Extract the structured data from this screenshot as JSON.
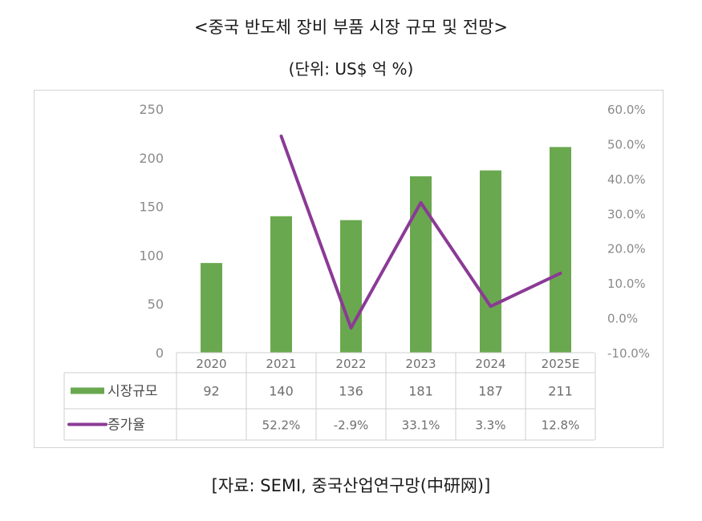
{
  "title": "<중국 반도체 장비 부품 시장 규모 및 전망>",
  "unit_note": "(단위: US$ 억 %)",
  "source": "[자료: SEMI, 중국산업연구망(中研网)]",
  "chart_data": {
    "type": "bar",
    "categories": [
      "2020",
      "2021",
      "2022",
      "2023",
      "2024",
      "2025E"
    ],
    "series": [
      {
        "name": "시장규모",
        "kind": "bar",
        "axis": "left",
        "color": "#6aa84f",
        "values": [
          92,
          140,
          136,
          181,
          187,
          211
        ],
        "labels": [
          "92",
          "140",
          "136",
          "181",
          "187",
          "211"
        ]
      },
      {
        "name": "증가율",
        "kind": "line",
        "axis": "right",
        "color": "#8b3a96",
        "values": [
          null,
          52.2,
          -2.9,
          33.1,
          3.3,
          12.8
        ],
        "labels": [
          "",
          "52.2%",
          "-2.9%",
          "33.1%",
          "3.3%",
          "12.8%"
        ]
      }
    ],
    "y_left": {
      "min": 0,
      "max": 250,
      "ticks": [
        "0",
        "50",
        "100",
        "150",
        "200",
        "250"
      ]
    },
    "y_right": {
      "min": -10,
      "max": 60,
      "ticks": [
        "-10.0%",
        "0.0%",
        "10.0%",
        "20.0%",
        "30.0%",
        "40.0%",
        "50.0%",
        "60.0%"
      ]
    },
    "grid": false,
    "legend": "data-table"
  }
}
